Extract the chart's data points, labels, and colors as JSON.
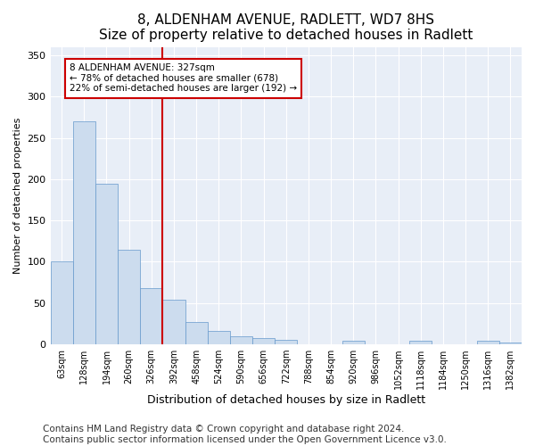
{
  "title1": "8, ALDENHAM AVENUE, RADLETT, WD7 8HS",
  "title2": "Size of property relative to detached houses in Radlett",
  "xlabel": "Distribution of detached houses by size in Radlett",
  "ylabel": "Number of detached properties",
  "categories": [
    "63sqm",
    "128sqm",
    "194sqm",
    "260sqm",
    "326sqm",
    "392sqm",
    "458sqm",
    "524sqm",
    "590sqm",
    "656sqm",
    "722sqm",
    "788sqm",
    "854sqm",
    "920sqm",
    "986sqm",
    "1052sqm",
    "1118sqm",
    "1184sqm",
    "1250sqm",
    "1316sqm",
    "1382sqm"
  ],
  "values": [
    100,
    270,
    195,
    115,
    68,
    54,
    27,
    16,
    10,
    8,
    5,
    0,
    0,
    4,
    0,
    0,
    4,
    0,
    0,
    4,
    2
  ],
  "bar_color": "#ccdcee",
  "bar_edge_color": "#6699cc",
  "vline_x_index": 4,
  "vline_color": "#cc0000",
  "annotation_line1": "8 ALDENHAM AVENUE: 327sqm",
  "annotation_line2": "← 78% of detached houses are smaller (678)",
  "annotation_line3": "22% of semi-detached houses are larger (192) →",
  "annotation_box_color": "#cc0000",
  "ylim": [
    0,
    360
  ],
  "yticks": [
    0,
    50,
    100,
    150,
    200,
    250,
    300,
    350
  ],
  "footer": "Contains HM Land Registry data © Crown copyright and database right 2024.\nContains public sector information licensed under the Open Government Licence v3.0.",
  "bg_color": "#ffffff",
  "plot_bg_color": "#e8eef7",
  "grid_color": "#ffffff",
  "title1_fontsize": 11,
  "title2_fontsize": 10,
  "tick_fontsize": 7,
  "ylabel_fontsize": 8,
  "xlabel_fontsize": 9,
  "footer_fontsize": 7.5
}
